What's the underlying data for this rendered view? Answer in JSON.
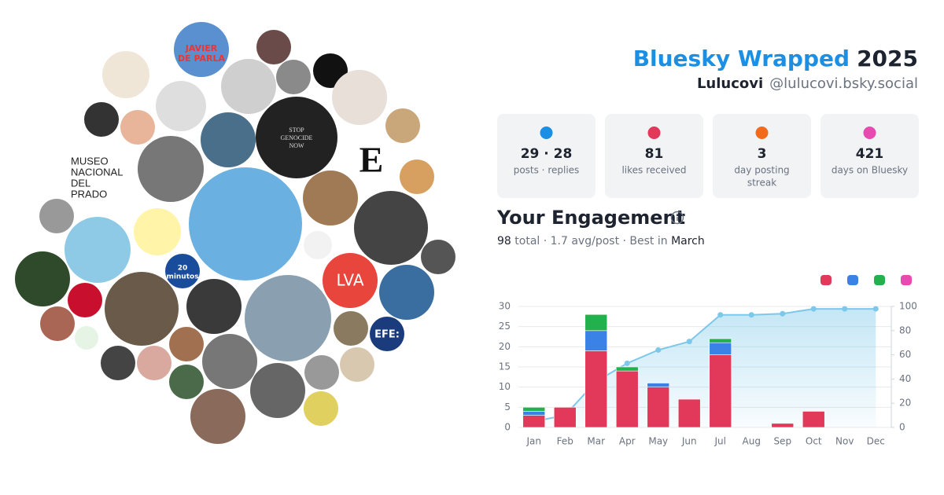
{
  "header": {
    "title": "Bluesky Wrapped",
    "year": "2025",
    "name": "Lulucovi",
    "handle": "@lulucovi.bsky.social"
  },
  "stats": [
    {
      "value": "29 · 28",
      "label": [
        "posts · replies"
      ]
    },
    {
      "value": "81",
      "label": [
        "likes received"
      ]
    },
    {
      "value": "3",
      "label": [
        "day posting",
        "streak"
      ]
    },
    {
      "value": "421",
      "label": [
        "days on Bluesky"
      ]
    }
  ],
  "avatars": {
    "prado": [
      "MUSEO",
      "NACIONAL",
      "DEL",
      "PRADO"
    ],
    "stop": [
      "STOP",
      "GENOCIDE",
      "NOW"
    ],
    "parla": [
      "JAVIER",
      "DE PARLA"
    ],
    "lva": "LVA",
    "minutos": [
      "20",
      "minutos"
    ],
    "efe": "EFE:",
    "e": "E"
  },
  "engagement": {
    "title": "Your Engagement",
    "summary": [
      "98",
      " total · 1.7 avg/post · Best in ",
      "March"
    ]
  },
  "chart_data": {
    "type": "bar",
    "categories": [
      "Jan",
      "Feb",
      "Mar",
      "Apr",
      "May",
      "Jun",
      "Jul",
      "Aug",
      "Sep",
      "Oct",
      "Nov",
      "Dec"
    ],
    "series": [
      {
        "color": "#e2385a",
        "values": [
          3,
          5,
          19,
          14,
          10,
          7,
          18,
          0,
          1,
          4,
          0,
          0
        ]
      },
      {
        "color": "#3b82e6",
        "values": [
          1,
          0,
          5,
          0,
          1,
          0,
          3,
          0,
          0,
          0,
          0,
          0
        ]
      },
      {
        "color": "#22b14c",
        "values": [
          1,
          0,
          4,
          1,
          0,
          0,
          1,
          0,
          0,
          0,
          0,
          0
        ]
      },
      {
        "color": "#e84bb0",
        "values": [
          0,
          0,
          0,
          0,
          0,
          0,
          0,
          0,
          0,
          0,
          0,
          0
        ]
      },
      {
        "type": "line",
        "axis": "y2",
        "color": "#7cc8ea",
        "values": [
          5,
          10,
          38,
          53,
          64,
          71,
          93,
          93,
          94,
          98,
          98,
          98
        ]
      }
    ],
    "ylim": [
      0,
      30
    ],
    "yticks": [
      0,
      5,
      10,
      15,
      20,
      25,
      30
    ],
    "y2lim": [
      0,
      100
    ],
    "y2ticks": [
      0,
      20,
      40,
      60,
      80,
      100
    ],
    "grid": true
  }
}
